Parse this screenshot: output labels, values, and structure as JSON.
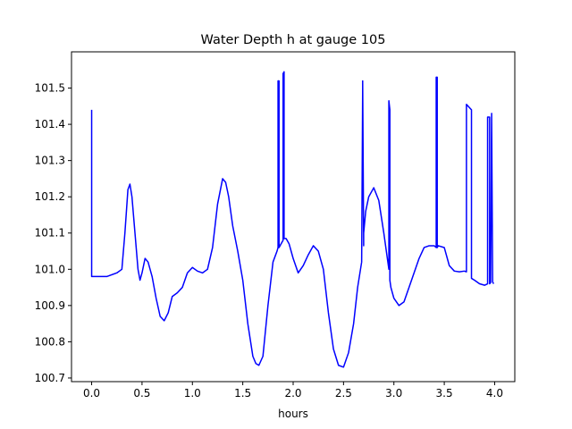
{
  "chart_data": {
    "type": "line",
    "title": "Water Depth h at gauge 105",
    "xlabel": "hours",
    "ylabel": "",
    "xlim": [
      -0.2,
      4.2
    ],
    "ylim": [
      100.69,
      101.6
    ],
    "x_ticks": [
      0.0,
      0.5,
      1.0,
      1.5,
      2.0,
      2.5,
      3.0,
      3.5,
      4.0
    ],
    "x_tick_labels": [
      "0.0",
      "0.5",
      "1.0",
      "1.5",
      "2.0",
      "2.5",
      "3.0",
      "3.5",
      "4.0"
    ],
    "y_ticks": [
      100.7,
      100.8,
      100.9,
      101.0,
      101.1,
      101.2,
      101.3,
      101.4,
      101.5
    ],
    "y_tick_labels": [
      "100.7",
      "100.8",
      "100.9",
      "101.0",
      "101.1",
      "101.2",
      "101.3",
      "101.4",
      "101.5"
    ],
    "grid": false,
    "line_color": "#0000ff",
    "series": [
      {
        "x": [
          0.0,
          0.0,
          0.001,
          0.05,
          0.15,
          0.25,
          0.3,
          0.33,
          0.36,
          0.38,
          0.4,
          0.43,
          0.46,
          0.48,
          0.5,
          0.53,
          0.56,
          0.6,
          0.64,
          0.68,
          0.72,
          0.76,
          0.8,
          0.85,
          0.9,
          0.95,
          1.0,
          1.05,
          1.1,
          1.15,
          1.2,
          1.25,
          1.3,
          1.33,
          1.36,
          1.4,
          1.45,
          1.5,
          1.55,
          1.6,
          1.63,
          1.66,
          1.7,
          1.75,
          1.8,
          1.84,
          1.85,
          1.85,
          1.86,
          1.86,
          1.88,
          1.9,
          1.9,
          1.91,
          1.91,
          1.93,
          1.96,
          2.0,
          2.05,
          2.1,
          2.15,
          2.2,
          2.25,
          2.3,
          2.35,
          2.4,
          2.45,
          2.5,
          2.55,
          2.6,
          2.64,
          2.68,
          2.69,
          2.69,
          2.7,
          2.7,
          2.72,
          2.75,
          2.8,
          2.85,
          2.9,
          2.94,
          2.95,
          2.95,
          2.96,
          2.96,
          2.97,
          3.0,
          3.05,
          3.1,
          3.15,
          3.2,
          3.25,
          3.3,
          3.35,
          3.4,
          3.42,
          3.42,
          3.43,
          3.43,
          3.44,
          3.5,
          3.55,
          3.6,
          3.65,
          3.7,
          3.72,
          3.72,
          3.77,
          3.77,
          3.8,
          3.85,
          3.9,
          3.93,
          3.93,
          3.95,
          3.95,
          3.96,
          3.97,
          3.97,
          3.98,
          3.99
        ],
        "y": [
          101.44,
          100.98,
          100.98,
          100.98,
          100.98,
          100.99,
          101.0,
          101.1,
          101.22,
          101.235,
          101.2,
          101.1,
          101.0,
          100.97,
          100.99,
          101.03,
          101.02,
          100.98,
          100.92,
          100.87,
          100.858,
          100.88,
          100.925,
          100.935,
          100.95,
          100.99,
          101.005,
          100.995,
          100.99,
          101.0,
          101.06,
          101.18,
          101.25,
          101.24,
          101.2,
          101.12,
          101.05,
          100.97,
          100.85,
          100.76,
          100.74,
          100.735,
          100.76,
          100.9,
          101.02,
          101.05,
          101.06,
          101.52,
          101.52,
          101.06,
          101.07,
          101.08,
          101.54,
          101.545,
          101.085,
          101.085,
          101.07,
          101.03,
          100.99,
          101.01,
          101.04,
          101.065,
          101.05,
          101.0,
          100.88,
          100.78,
          100.735,
          100.73,
          100.77,
          100.85,
          100.95,
          101.02,
          101.5,
          101.52,
          101.065,
          101.1,
          101.16,
          101.2,
          101.225,
          101.19,
          101.1,
          101.02,
          101.0,
          101.465,
          101.44,
          100.97,
          100.95,
          100.92,
          100.9,
          100.91,
          100.95,
          100.99,
          101.03,
          101.06,
          101.065,
          101.065,
          101.06,
          101.53,
          101.53,
          101.06,
          101.065,
          101.06,
          101.01,
          100.995,
          100.993,
          100.995,
          100.993,
          101.455,
          101.44,
          100.975,
          100.97,
          100.96,
          100.956,
          100.96,
          101.42,
          101.42,
          100.96,
          100.963,
          101.425,
          101.43,
          100.965,
          100.96
        ]
      }
    ]
  }
}
